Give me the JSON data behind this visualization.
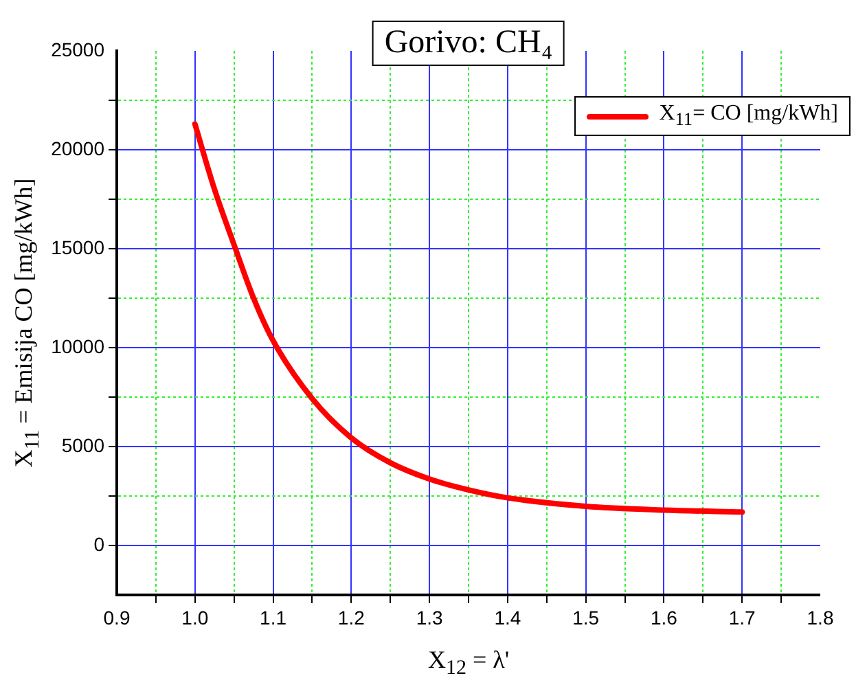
{
  "chart_data": {
    "type": "line",
    "title": "Gorivo: CH₄",
    "xlabel": "X$_{12}$ = λ'",
    "ylabel": "X$_{11}$ = Emisija CO [mg/kWh]",
    "x": [
      1.0,
      1.025,
      1.05,
      1.075,
      1.1,
      1.15,
      1.2,
      1.25,
      1.3,
      1.35,
      1.4,
      1.5,
      1.6,
      1.7
    ],
    "series": [
      {
        "name": "X$_{11}$= CO [mg/kWh]",
        "color": "#ff0000",
        "values": [
          21300,
          18000,
          15200,
          12500,
          10350,
          7420,
          5440,
          4180,
          3360,
          2810,
          2410,
          1980,
          1790,
          1690
        ]
      }
    ],
    "xlim": [
      0.9,
      1.8
    ],
    "xticks": [
      0.9,
      {
        "value": 0.95,
        "label": null
      },
      "1.0",
      {
        "value": 1.05,
        "label": null
      },
      1.1,
      {
        "value": 1.15,
        "label": null
      },
      1.2,
      {
        "value": 1.25,
        "label": null
      },
      1.3,
      {
        "value": 1.35,
        "label": null
      },
      1.4,
      {
        "value": 1.45,
        "label": null
      },
      1.5,
      {
        "value": 1.55,
        "label": null
      },
      1.6,
      {
        "value": 1.65,
        "label": null
      },
      1.7,
      {
        "value": 1.75,
        "label": null
      },
      1.8
    ],
    "ylim": [
      -2500,
      25000
    ],
    "yticks": [
      {
        "value": -2500,
        "label": null
      },
      0,
      {
        "value": 2500,
        "label": null
      },
      5000,
      {
        "value": 7500,
        "label": null
      },
      10000,
      {
        "value": 12500,
        "label": null
      },
      15000,
      {
        "value": 17500,
        "label": null
      },
      20000,
      {
        "value": 22500,
        "label": null
      },
      25000
    ],
    "grid": true,
    "legend": "top right",
    "marker": "none",
    "line_style": "solid"
  }
}
